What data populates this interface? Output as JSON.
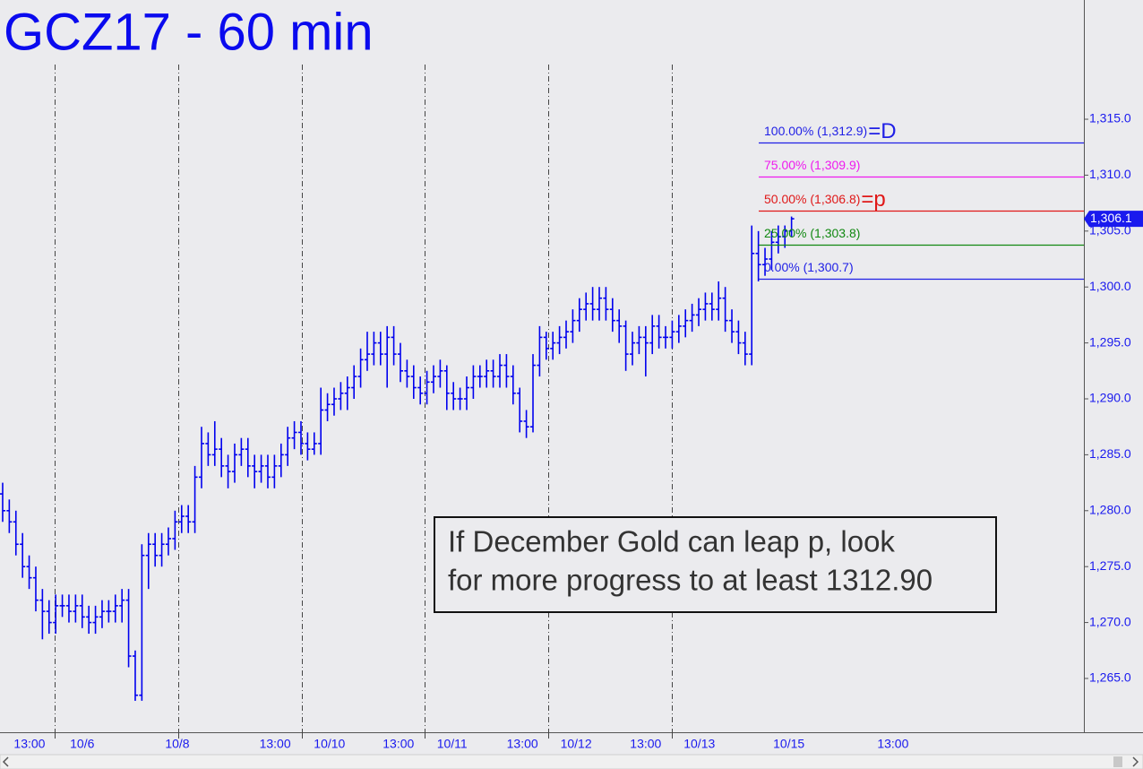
{
  "chart_data": {
    "type": "ohlc",
    "title": "GCZ17 - 60 min",
    "color": "#0000ee",
    "xlim": [
      -0.4,
      163.1
    ],
    "ylim": [
      1260.35,
      1325.66
    ],
    "yticks": [
      {
        "value": 1265,
        "label": "1,265.0"
      },
      {
        "value": 1270,
        "label": "1,270.0"
      },
      {
        "value": 1275,
        "label": "1,275.0"
      },
      {
        "value": 1280,
        "label": "1,280.0"
      },
      {
        "value": 1285,
        "label": "1,285.0"
      },
      {
        "value": 1290,
        "label": "1,290.0"
      },
      {
        "value": 1295,
        "label": "1,295.0"
      },
      {
        "value": 1300,
        "label": "1,300.0"
      },
      {
        "value": 1305,
        "label": "1,305.0"
      },
      {
        "value": 1310,
        "label": "1,310.0"
      },
      {
        "value": 1315,
        "label": "1,315.0"
      }
    ],
    "xticks": [
      {
        "value": 4.05,
        "label": "13:00"
      },
      {
        "value": 12,
        "label": "10/6"
      },
      {
        "value": 26.35,
        "label": "10/8"
      },
      {
        "value": 41.1,
        "label": "13:00"
      },
      {
        "value": 49.3,
        "label": "10/10"
      },
      {
        "value": 59.7,
        "label": "13:00"
      },
      {
        "value": 67.8,
        "label": "10/11"
      },
      {
        "value": 78.4,
        "label": "13:00"
      },
      {
        "value": 86.5,
        "label": "10/12"
      },
      {
        "value": 97,
        "label": "13:00"
      },
      {
        "value": 105.1,
        "label": "10/13"
      },
      {
        "value": 118.6,
        "label": "10/15"
      },
      {
        "value": 134.3,
        "label": "13:00"
      }
    ],
    "session_lines": [
      7.84,
      26.5,
      45.1,
      63.6,
      82.3,
      100.9
    ],
    "x": [
      0,
      1,
      2,
      3,
      4,
      5,
      6,
      7,
      8,
      9,
      10,
      11,
      12,
      13,
      14,
      15,
      16,
      17,
      18,
      19,
      20,
      21,
      22,
      23,
      24,
      25,
      26,
      27,
      28,
      29,
      30,
      31,
      32,
      33,
      34,
      35,
      36,
      37,
      38,
      39,
      40,
      41,
      42,
      43,
      44,
      45,
      46,
      47,
      48,
      49,
      50,
      51,
      52,
      53,
      54,
      55,
      56,
      57,
      58,
      59,
      60,
      61,
      62,
      63,
      64,
      65,
      66,
      67,
      68,
      69,
      70,
      71,
      72,
      73,
      74,
      75,
      76,
      77,
      78,
      79,
      80,
      81,
      82,
      83,
      84,
      85,
      86,
      87,
      88,
      89,
      90,
      91,
      92,
      93,
      94,
      95,
      96,
      97,
      98,
      99,
      100,
      101,
      102,
      103,
      104,
      105,
      106,
      107,
      108,
      109,
      110,
      111,
      112,
      113,
      114,
      115,
      116,
      117,
      118,
      119
    ],
    "series": [
      {
        "open": [
          1281.5,
          1280,
          1279,
          1277,
          1275,
          1274,
          1272,
          1271,
          1270,
          1271.5,
          1271.5,
          1271,
          1271.5,
          1270.5,
          1270,
          1270.5,
          1271,
          1271,
          1271.5,
          1272,
          1267,
          1263.5,
          1276,
          1277,
          1276,
          1277,
          1277.5,
          1279,
          1279.5,
          1279,
          1283,
          1286,
          1285,
          1285.5,
          1284,
          1283.5,
          1285,
          1285.5,
          1284,
          1283.5,
          1284,
          1283,
          1284,
          1285,
          1286.5,
          1287,
          1286,
          1285.5,
          1286,
          1289,
          1289.5,
          1290,
          1290.5,
          1291,
          1292,
          1293.5,
          1294,
          1295,
          1294,
          1295.5,
          1294,
          1292.5,
          1292,
          1291,
          1290.5,
          1291.5,
          1292,
          1292.5,
          1290.5,
          1290,
          1290,
          1291,
          1292,
          1292,
          1292.5,
          1292,
          1293,
          1292,
          1290.5,
          1288,
          1287.5,
          1293,
          1295.5,
          1294.5,
          1295,
          1295.5,
          1296,
          1297,
          1298,
          1298.5,
          1298,
          1299,
          1298,
          1297,
          1296.5,
          1294,
          1295,
          1295.5,
          1295,
          1296.5,
          1295.5,
          1295.5,
          1296,
          1296.5,
          1297,
          1297.5,
          1298,
          1298.5,
          1298,
          1299,
          1297,
          1296,
          1295,
          1294,
          1303,
          1302,
          1302.5,
          1304,
          1304.5,
          1305
        ],
        "high": [
          1282.5,
          1281,
          1280,
          1278,
          1276,
          1275,
          1273,
          1272,
          1272.5,
          1272.5,
          1272.5,
          1272.5,
          1272.5,
          1271.5,
          1271.5,
          1272,
          1272,
          1272.5,
          1273,
          1273,
          1267.5,
          1277,
          1278,
          1278,
          1278,
          1278.5,
          1280,
          1280.5,
          1280.5,
          1284,
          1287.5,
          1287,
          1288,
          1286.5,
          1285,
          1286,
          1286.5,
          1286.5,
          1285,
          1285,
          1285,
          1285,
          1286,
          1287.5,
          1288,
          1288,
          1287,
          1287,
          1291,
          1290.5,
          1291,
          1291.5,
          1292,
          1293,
          1294.5,
          1296,
          1296,
          1296,
          1296.5,
          1296.5,
          1295,
          1293.5,
          1293,
          1292,
          1292.5,
          1293,
          1293.5,
          1293,
          1291.5,
          1291,
          1292,
          1293,
          1293,
          1293.5,
          1293.5,
          1294,
          1294,
          1293,
          1291,
          1289,
          1294,
          1296.5,
          1296,
          1296,
          1296.5,
          1297,
          1298,
          1299,
          1299.5,
          1300,
          1300,
          1300,
          1299,
          1298,
          1297,
          1296,
          1296.5,
          1296.5,
          1297.5,
          1297.5,
          1296.5,
          1297,
          1297.5,
          1298,
          1298.5,
          1299,
          1299.5,
          1299.5,
          1300.5,
          1300,
          1298,
          1297,
          1296,
          1305.5,
          1305,
          1303.5,
          1305,
          1305.5,
          1305.5,
          1306.3
        ],
        "low": [
          1279,
          1278,
          1276,
          1274,
          1273,
          1271,
          1268.5,
          1269,
          1269,
          1270.5,
          1270,
          1270,
          1269.5,
          1269,
          1269,
          1269.5,
          1270,
          1270,
          1270,
          1266,
          1263,
          1263,
          1273,
          1275,
          1275,
          1276,
          1276.5,
          1278,
          1278,
          1278,
          1282,
          1284,
          1284,
          1283,
          1282,
          1282.5,
          1284,
          1283,
          1282,
          1282.5,
          1282,
          1282,
          1283,
          1284,
          1285.5,
          1285,
          1284.5,
          1285,
          1285,
          1288,
          1288.5,
          1289,
          1289,
          1290,
          1291,
          1292.5,
          1293,
          1293,
          1291,
          1293,
          1291.5,
          1291,
          1290,
          1289.5,
          1289.5,
          1290.5,
          1291,
          1289,
          1289,
          1289,
          1289,
          1290,
          1291,
          1291,
          1291,
          1291,
          1291,
          1289.5,
          1287,
          1286.5,
          1287,
          1292,
          1293.5,
          1293.5,
          1294,
          1294.5,
          1295,
          1296,
          1297,
          1297,
          1297,
          1297,
          1296,
          1295,
          1292.5,
          1293,
          1294,
          1292,
          1294,
          1294.5,
          1294.5,
          1294.5,
          1295,
          1295.5,
          1296,
          1296.5,
          1297,
          1297,
          1297,
          1296,
          1295,
          1294,
          1293,
          1293,
          1300.5,
          1301,
          1301.5,
          1303,
          1303.5,
          1304.5
        ],
        "close": [
          1280,
          1279,
          1277,
          1275,
          1274,
          1272,
          1271,
          1270,
          1271.5,
          1271.5,
          1271,
          1271.5,
          1270.5,
          1270,
          1270.5,
          1271,
          1271,
          1271.5,
          1272,
          1267,
          1263.5,
          1276,
          1277,
          1276,
          1277,
          1277.5,
          1279,
          1279.5,
          1279,
          1283,
          1286,
          1285,
          1285.5,
          1284,
          1283.5,
          1285,
          1285.5,
          1284,
          1283.5,
          1284,
          1283,
          1284,
          1285,
          1286.5,
          1287,
          1286,
          1285.5,
          1286,
          1289,
          1289.5,
          1290,
          1290.5,
          1291,
          1292,
          1293.5,
          1294,
          1295,
          1294,
          1295.5,
          1294,
          1292.5,
          1292,
          1291,
          1290.5,
          1291.5,
          1292,
          1292.5,
          1290.5,
          1290,
          1290,
          1291,
          1292,
          1292,
          1292.5,
          1292,
          1293,
          1292,
          1290.5,
          1288,
          1287.5,
          1293,
          1295.5,
          1294.5,
          1295,
          1295.5,
          1296,
          1297,
          1298,
          1298.5,
          1298,
          1299,
          1298,
          1297,
          1296.5,
          1294,
          1295,
          1295.5,
          1295,
          1296.5,
          1295.5,
          1295.5,
          1296,
          1296.5,
          1297,
          1297.5,
          1298,
          1298.5,
          1298,
          1299,
          1297,
          1296,
          1295,
          1294,
          1303,
          1302,
          1302.5,
          1304,
          1304.5,
          1305,
          1306.1
        ]
      }
    ],
    "levels": [
      {
        "label": "100.00% (1,312.9)",
        "value": 1312.9,
        "color": "#1f1fe6",
        "tag": "=D"
      },
      {
        "label": "75.00% (1,309.9)",
        "value": 1309.9,
        "color": "#ee1aee"
      },
      {
        "label": "50.00% (1,306.8)",
        "value": 1306.8,
        "color": "#e01818",
        "tag": "=p"
      },
      {
        "label": "25.00% (1,303.8)",
        "value": 1303.8,
        "color": "#118811"
      },
      {
        "label": "0.00% (1,300.7)",
        "value": 1300.7,
        "color": "#1f1fe6"
      }
    ],
    "last_price": {
      "value": 1306.1,
      "label": "1,306.1"
    },
    "annotation": [
      "If December Gold can leap p, look",
      "for more progress to at least 1312.90"
    ]
  }
}
